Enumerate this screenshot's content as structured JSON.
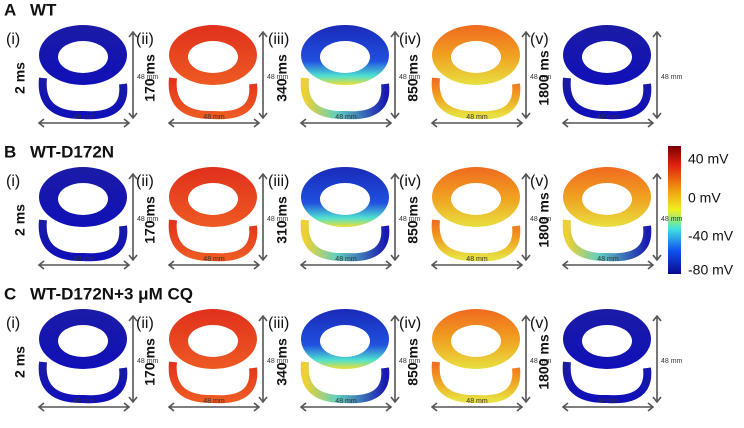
{
  "rows": [
    {
      "letter": "A",
      "title": "WT",
      "panels": [
        {
          "numeral": "(i)",
          "time": "2 ms",
          "height_label": "48 mm",
          "width_label": "48 mm"
        },
        {
          "numeral": "(ii)",
          "time": "170 ms",
          "height_label": "48 mm",
          "width_label": "48 mm"
        },
        {
          "numeral": "(iii)",
          "time": "340 ms",
          "height_label": "48 mm",
          "width_label": "48 mm"
        },
        {
          "numeral": "(iv)",
          "time": "850 ms",
          "height_label": "48 mm",
          "width_label": "48 mm"
        },
        {
          "numeral": "(v)",
          "time": "1800 ms",
          "height_label": "48 mm",
          "width_label": "48 mm"
        }
      ]
    },
    {
      "letter": "B",
      "title": "WT-D172N",
      "panels": [
        {
          "numeral": "(i)",
          "time": "2 ms",
          "height_label": "48 mm",
          "width_label": "48 mm"
        },
        {
          "numeral": "(ii)",
          "time": "170 ms",
          "height_label": "48 mm",
          "width_label": "48 mm"
        },
        {
          "numeral": "(iii)",
          "time": "310 ms",
          "height_label": "48 mm",
          "width_label": "48 mm"
        },
        {
          "numeral": "(iv)",
          "time": "850 ms",
          "height_label": "48 mm",
          "width_label": "48 mm"
        },
        {
          "numeral": "(v)",
          "time": "1800 ms",
          "height_label": "48 mm",
          "width_label": "48 mm"
        }
      ]
    },
    {
      "letter": "C",
      "title": "WT-D172N+3 μM CQ",
      "panels": [
        {
          "numeral": "(i)",
          "time": "2 ms",
          "height_label": "48 mm",
          "width_label": "48 mm"
        },
        {
          "numeral": "(ii)",
          "time": "170 ms",
          "height_label": "48 mm",
          "width_label": "48 mm"
        },
        {
          "numeral": "(iii)",
          "time": "340 ms",
          "height_label": "48 mm",
          "width_label": "48 mm"
        },
        {
          "numeral": "(iv)",
          "time": "850 ms",
          "height_label": "48 mm",
          "width_label": "48 mm"
        },
        {
          "numeral": "(v)",
          "time": "1800 ms",
          "height_label": "48 mm",
          "width_label": "48 mm"
        }
      ]
    }
  ],
  "colorbar": {
    "labels": [
      "40 mV",
      "0 mV",
      "-40 mV",
      "-80 mV"
    ]
  }
}
